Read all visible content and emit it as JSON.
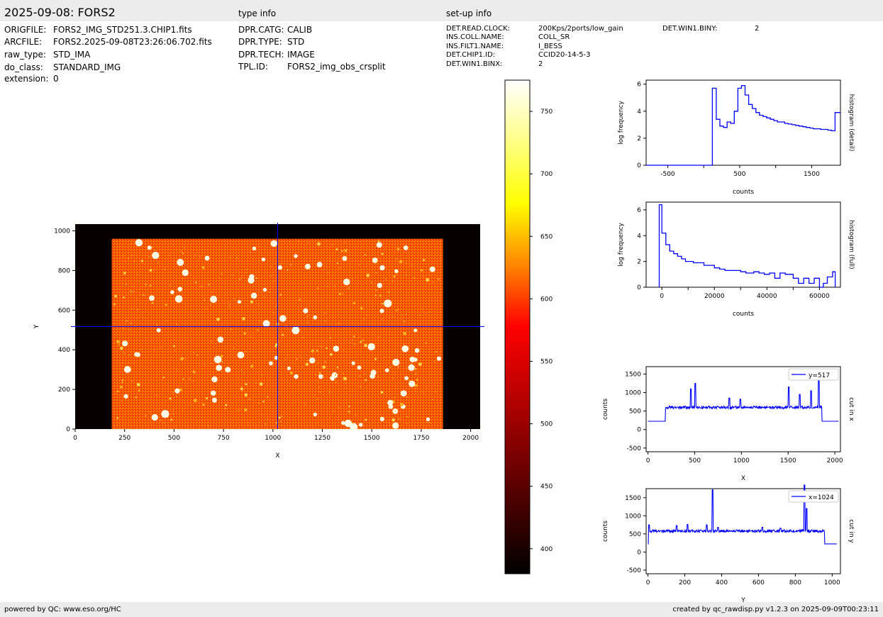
{
  "header": {
    "title": "2025-09-08: FORS2",
    "section_type": "type info",
    "section_setup": "set-up info"
  },
  "file_info": [
    {
      "key": "ORIGFILE:",
      "value": "FORS2_IMG_STD251.3.CHIP1.fits"
    },
    {
      "key": "ARCFILE:",
      "value": "FORS2.2025-09-08T23:26:06.702.fits"
    },
    {
      "key": "raw_type:",
      "value": "STD_IMA"
    },
    {
      "key": "do_class:",
      "value": "STANDARD_IMG"
    },
    {
      "key": "extension:",
      "value": "0"
    }
  ],
  "type_info": [
    {
      "key": "DPR.CATG:",
      "value": "CALIB"
    },
    {
      "key": "DPR.TYPE:",
      "value": "STD"
    },
    {
      "key": "DPR.TECH:",
      "value": "IMAGE"
    },
    {
      "key": "TPL.ID:",
      "value": "FORS2_img_obs_crsplit"
    }
  ],
  "setup_info": [
    {
      "key": "DET.READ.CLOCK:",
      "value": "200Kps/2ports/low_gain"
    },
    {
      "key": "INS.COLL.NAME:",
      "value": "COLL_SR"
    },
    {
      "key": "INS.FILT1.NAME:",
      "value": "I_BESS"
    },
    {
      "key": "DET.CHIP1.ID:",
      "value": "CCID20-14-5-3"
    },
    {
      "key": "DET.WIN1.BINX:",
      "value": "2"
    }
  ],
  "setup_info_2": [
    {
      "key": "DET.WIN1.BINY:",
      "value": "2"
    }
  ],
  "footer": {
    "left": "powered by QC: www.eso.org/HC",
    "right": "created by qc_rawdisp.py v1.2.3 on 2025-09-09T00:23:11"
  },
  "colors": {
    "series": "#0000ff",
    "header_bg": "#ececec"
  },
  "chart_data": [
    {
      "type": "heatmap",
      "name": "image",
      "xlabel": "X",
      "ylabel": "Y",
      "xlim": [
        0,
        2048
      ],
      "ylim": [
        0,
        1034
      ],
      "xticks": [
        0,
        250,
        500,
        750,
        1000,
        1250,
        1500,
        1750,
        2000
      ],
      "yticks": [
        0,
        200,
        400,
        600,
        800,
        1000
      ],
      "illuminated_region": {
        "x": [
          185,
          1860
        ],
        "y": [
          0,
          960
        ]
      },
      "crosshair": {
        "x": 1024,
        "y": 517
      },
      "colormap": "afmhot"
    },
    {
      "type": "colorbar",
      "range": [
        380,
        775
      ],
      "ticks": [
        400,
        450,
        500,
        550,
        600,
        650,
        700,
        750
      ]
    },
    {
      "type": "line",
      "name": "histogram_detail",
      "right_label": "histogram (detail)",
      "xlabel": "counts",
      "ylabel": "log frequency",
      "xlim": [
        -800,
        1900
      ],
      "ylim": [
        0,
        6.3
      ],
      "xticks": [
        -500,
        500,
        1500
      ],
      "xticks_unlabeled": [
        0,
        1000
      ],
      "yticks": [
        0,
        2,
        4,
        6
      ],
      "step": true,
      "x": [
        -800,
        120,
        120,
        175,
        225,
        275,
        325,
        375,
        425,
        475,
        525,
        575,
        625,
        675,
        725,
        775,
        825,
        875,
        925,
        975,
        1025,
        1075,
        1125,
        1175,
        1225,
        1275,
        1325,
        1375,
        1425,
        1475,
        1525,
        1575,
        1625,
        1675,
        1725,
        1775,
        1825,
        1900
      ],
      "values": [
        0,
        0,
        5.7,
        3.4,
        2.9,
        2.8,
        3.2,
        3.1,
        4.0,
        5.7,
        5.9,
        5.2,
        4.5,
        4.2,
        3.9,
        3.7,
        3.6,
        3.5,
        3.4,
        3.3,
        3.2,
        3.2,
        3.1,
        3.05,
        3.0,
        2.95,
        2.9,
        2.85,
        2.8,
        2.75,
        2.7,
        2.7,
        2.65,
        2.65,
        2.6,
        2.55,
        3.9,
        3.9
      ]
    },
    {
      "type": "line",
      "name": "histogram_full",
      "right_label": "histogram (full)",
      "xlabel": "counts",
      "ylabel": "log frequency",
      "xlim": [
        -6000,
        68000
      ],
      "ylim": [
        0,
        6.6
      ],
      "xticks": [
        0,
        20000,
        40000,
        60000
      ],
      "xticks_unlabeled": [
        10000,
        30000,
        50000
      ],
      "yticks": [
        0,
        2,
        4,
        6
      ],
      "step": true,
      "x": [
        -1000,
        -1000,
        0,
        1500,
        3000,
        4500,
        6000,
        7500,
        9000,
        10500,
        12000,
        16000,
        20000,
        22000,
        24000,
        27000,
        30000,
        32000,
        35000,
        37000,
        39000,
        41000,
        43000,
        45000,
        47000,
        50000,
        52000,
        54000,
        56000,
        58000,
        60000,
        61500,
        63000,
        65000,
        66000
      ],
      "values": [
        0,
        6.4,
        4.2,
        3.3,
        2.8,
        2.6,
        2.4,
        2.2,
        2.0,
        2.0,
        1.9,
        1.7,
        1.5,
        1.4,
        1.3,
        1.3,
        1.2,
        1.1,
        1.2,
        1.1,
        1.0,
        1.1,
        0.7,
        1.1,
        1.0,
        0.7,
        0.3,
        0.7,
        0.3,
        0.7,
        0.0,
        0.3,
        0.8,
        1.2,
        0.0
      ]
    },
    {
      "type": "line",
      "name": "cut_x",
      "right_label": "cut in x",
      "legend": "y=517",
      "xlabel": "X",
      "ylabel": "counts",
      "xlim": [
        -20,
        2060
      ],
      "ylim": [
        -600,
        1700
      ],
      "xticks": [
        0,
        500,
        1000,
        1500,
        2000
      ],
      "yticks": [
        -500,
        0,
        500,
        1000,
        1500
      ],
      "flat_level": 600,
      "edge_level": 225,
      "edges": [
        185,
        1860
      ],
      "peaks": [
        [
          460,
          1100
        ],
        [
          505,
          1250
        ],
        [
          870,
          850
        ],
        [
          990,
          820
        ],
        [
          1505,
          1150
        ],
        [
          1625,
          950
        ],
        [
          1745,
          1050
        ],
        [
          1830,
          1350
        ]
      ]
    },
    {
      "type": "line",
      "name": "cut_y",
      "right_label": "cut in y",
      "legend": "x=1024",
      "xlabel": "Y",
      "ylabel": "counts",
      "xlim": [
        -10,
        1045
      ],
      "ylim": [
        -600,
        1750
      ],
      "xticks": [
        0,
        200,
        400,
        600,
        800,
        1000
      ],
      "yticks": [
        -500,
        0,
        500,
        1000,
        1500
      ],
      "flat_level": 580,
      "edge_level": 225,
      "edges": [
        5,
        958
      ],
      "peaks": [
        [
          5,
          750
        ],
        [
          155,
          730
        ],
        [
          215,
          760
        ],
        [
          320,
          750
        ],
        [
          350,
          1720
        ],
        [
          380,
          680
        ],
        [
          620,
          680
        ],
        [
          720,
          660
        ],
        [
          850,
          1850
        ],
        [
          862,
          1200
        ]
      ]
    }
  ]
}
